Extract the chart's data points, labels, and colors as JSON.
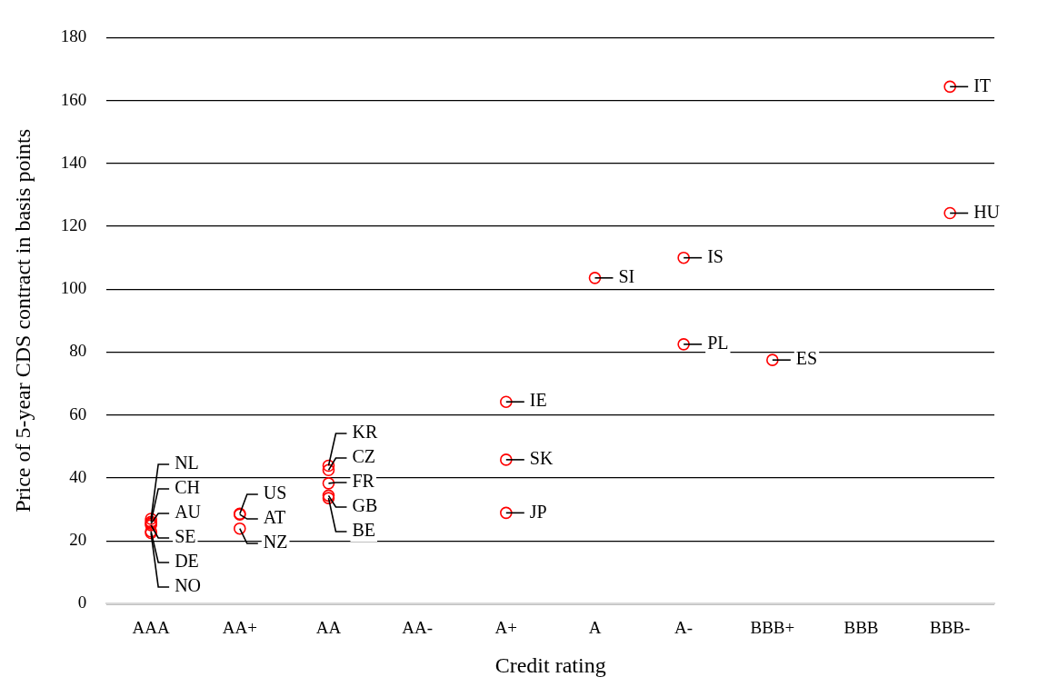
{
  "chart_data": {
    "type": "scatter",
    "xlabel": "Credit rating",
    "ylabel": "Price of 5-year CDS contract in basis points",
    "categories": [
      "AAA",
      "AA+",
      "AA",
      "AA-",
      "A+",
      "A",
      "A-",
      "BBB+",
      "BBB",
      "BBB-"
    ],
    "series": [
      {
        "color": "#ff0000",
        "x": [
          "AAA",
          "AAA",
          "AAA",
          "AAA",
          "AAA",
          "AAA",
          "AA+",
          "AA+",
          "AA+",
          "AA",
          "AA",
          "AA",
          "AA",
          "AA",
          "A+",
          "A+",
          "A+",
          "A",
          "A-",
          "A-",
          "BBB+",
          "BBB-",
          "BBB-"
        ],
        "values": [
          27,
          26,
          25.5,
          25,
          23,
          22.5,
          28.6,
          28.4,
          23.9,
          43.9,
          42.5,
          38.3,
          34.4,
          33.6,
          64.2,
          45.8,
          28.9,
          103.6,
          110,
          82.5,
          77.5,
          164.4,
          124.2
        ]
      }
    ],
    "ylim": [
      0,
      180
    ],
    "yticks": [
      0,
      20,
      40,
      60,
      80,
      100,
      120,
      140,
      160,
      180
    ],
    "grid": "y",
    "marker": "circle",
    "annotations": [
      {
        "text": "NL",
        "x": "AAA",
        "y": 27
      },
      {
        "text": "CH",
        "x": "AAA",
        "y": 26
      },
      {
        "text": "AU",
        "x": "AAA",
        "y": 25.5
      },
      {
        "text": "SE",
        "x": "AAA",
        "y": 25
      },
      {
        "text": "DE",
        "x": "AAA",
        "y": 23
      },
      {
        "text": "NO",
        "x": "AAA",
        "y": 22.5
      },
      {
        "text": "US",
        "x": "AA+",
        "y": 28.6
      },
      {
        "text": "AT",
        "x": "AA+",
        "y": 28.4
      },
      {
        "text": "NZ",
        "x": "AA+",
        "y": 23.9
      },
      {
        "text": "KR",
        "x": "AA",
        "y": 43.9
      },
      {
        "text": "CZ",
        "x": "AA",
        "y": 42.5
      },
      {
        "text": "FR",
        "x": "AA",
        "y": 38.3
      },
      {
        "text": "GB",
        "x": "AA",
        "y": 34.4
      },
      {
        "text": "BE",
        "x": "AA",
        "y": 33.6
      },
      {
        "text": "IE",
        "x": "A+",
        "y": 64.2
      },
      {
        "text": "SK",
        "x": "A+",
        "y": 45.8
      },
      {
        "text": "JP",
        "x": "A+",
        "y": 28.9
      },
      {
        "text": "SI",
        "x": "A",
        "y": 103.6
      },
      {
        "text": "IS",
        "x": "A-",
        "y": 110
      },
      {
        "text": "PL",
        "x": "A-",
        "y": 82.5
      },
      {
        "text": "ES",
        "x": "BBB+",
        "y": 77.5
      },
      {
        "text": "IT",
        "x": "BBB-",
        "y": 164.4
      },
      {
        "text": "HU",
        "x": "BBB-",
        "y": 124.2
      }
    ]
  }
}
